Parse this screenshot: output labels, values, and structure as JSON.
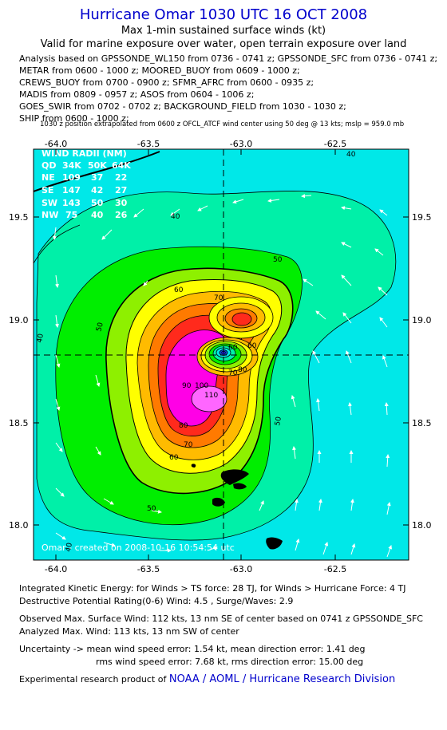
{
  "header": {
    "title": "Hurricane Omar 1030 UTC 16 OCT 2008",
    "subtitle1": "Max 1-min sustained surface winds (kt)",
    "subtitle2": "Valid for marine exposure over water, open terrain exposure over land"
  },
  "analysis_lines": [
    "Analysis based on  GPSSONDE_WL150 from 0736 - 0741 z;  GPSSONDE_SFC from 0736 - 0741 z;",
    "METAR from 0600 - 1000 z;  MOORED_BUOY from 0609 - 1000 z;",
    "CREWS_BUOY from 0700 - 0900 z;  SFMR_AFRC from 0600 - 0935 z;",
    "MADIS from 0809 - 0957 z;  ASOS from 0604 - 1006 z;",
    "GOES_SWIR from 0702 - 0702 z;  BACKGROUND_FIELD from 1030 - 1030 z;",
    "SHIP from 0600 - 1000 z;"
  ],
  "extrapolation_note": "1030 z position extrapolated from 0600 z OFCL_ATCF wind center using 50 deg @ 13 kts; mslp = 959.0 mb",
  "map": {
    "lon_ticks": [
      "-64.0",
      "-63.5",
      "-63.0",
      "-62.5"
    ],
    "lat_ticks": [
      "19.5",
      "19.0",
      "18.5",
      "18.0"
    ],
    "contour_labels": [
      "40",
      "40",
      "40",
      "40",
      "50",
      "50",
      "50",
      "50",
      "60",
      "60",
      "60",
      "70",
      "70",
      "80",
      "90",
      "100",
      "110",
      "60",
      "70",
      "80"
    ],
    "credit": "Omar - created on 2008-10-16 10:54:54 utc",
    "wind_radii": {
      "title": "WIND RADII (NM)",
      "header": [
        "QD",
        "34K",
        "50K",
        "64K"
      ],
      "rows": [
        [
          "NE",
          "109",
          "37",
          "22"
        ],
        [
          "SE",
          "147",
          "42",
          "27"
        ],
        [
          "SW",
          "143",
          "50",
          "30"
        ],
        [
          "NW",
          "75",
          "40",
          "26"
        ]
      ]
    },
    "colors": {
      "cyan": "#00e8e8",
      "band40": "#00f0a8",
      "band50": "#00ee00",
      "band60": "#8ef000",
      "band70": "#ffff00",
      "band80": "#ffbb00",
      "band90": "#ff7a00",
      "band100": "#ff2a1c",
      "band110": "#ff00e6",
      "band112": "#ff66ff",
      "land": "#000000"
    }
  },
  "footer": {
    "ike": "Integrated Kinetic Energy:  for Winds > TS force: 28 TJ,  for Winds > Hurricane Force: 4 TJ",
    "dpr": "Destructive Potential Rating(0-6)   Wind: 4.5 , Surge/Waves: 2.9",
    "observed_max": "Observed Max. Surface Wind: 112 kts, 13 nm SE of center based on 0741 z GPSSONDE_SFC",
    "analyzed_max": "Analyzed Max. Wind: 113 kts, 13 nm SW of center",
    "uncertainty1": "Uncertainty -> mean wind speed error: 1.54 kt,   mean direction error: 1.41 deg",
    "uncertainty2": "rms wind speed error: 7.68 kt,   rms direction error: 15.00 deg",
    "credit_prefix": "Experimental research product of ",
    "credit_link": "NOAA / AOML / Hurricane Research Division"
  }
}
